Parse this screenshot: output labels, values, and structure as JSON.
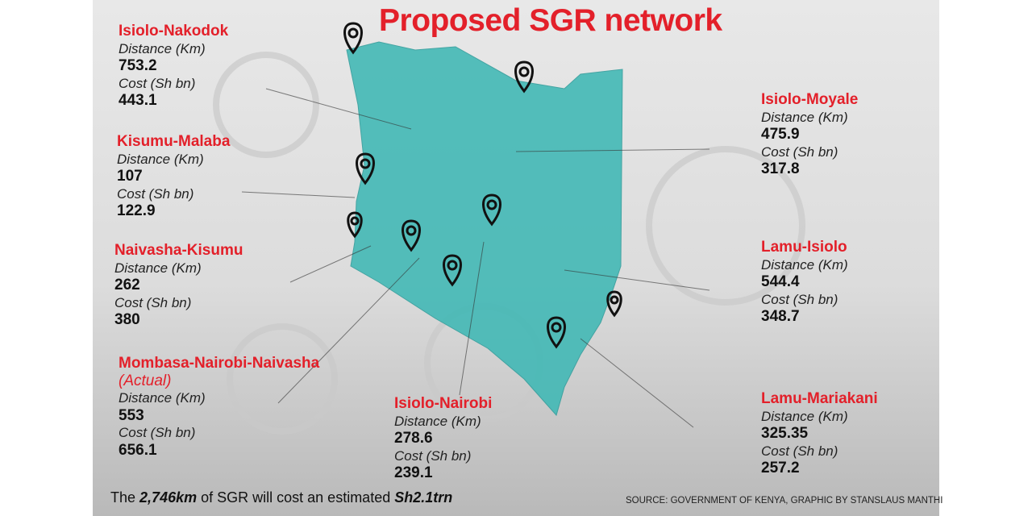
{
  "header": {
    "title": "Proposed SGR network"
  },
  "routes": [
    {
      "name": "Isiolo-Nakodok",
      "distance_label": "Distance (Km)",
      "distance": 753.2,
      "cost_label": "Cost (Sh bn)",
      "cost": 443.1
    },
    {
      "name": "Kisumu-Malaba",
      "distance_label": "Distance (Km)",
      "distance": 107,
      "cost_label": "Cost (Sh bn)",
      "cost": 122.9
    },
    {
      "name": "Naivasha-Kisumu",
      "distance_label": "Distance (Km)",
      "distance": 262,
      "cost_label": "Cost (Sh bn)",
      "cost": 380
    },
    {
      "name": "Mombasa-Nairobi-Naivasha",
      "note": "(Actual)",
      "distance_label": "Distance (Km)",
      "distance": 553,
      "cost_label": "Cost (Sh bn)",
      "cost": 656.1
    },
    {
      "name": "Isiolo-Nairobi",
      "distance_label": "Distance (Km)",
      "distance": 278.6,
      "cost_label": "Cost (Sh bn)",
      "cost": 239.1
    },
    {
      "name": "Isiolo-Moyale",
      "distance_label": "Distance (Km)",
      "distance": 475.9,
      "cost_label": "Cost (Sh bn)",
      "cost": 317.8
    },
    {
      "name": "Lamu-Isiolo",
      "distance_label": "Distance (Km)",
      "distance": 544.4,
      "cost_label": "Cost (Sh bn)",
      "cost": 348.7
    },
    {
      "name": "Lamu-Mariakani",
      "distance_label": "Distance (Km)",
      "distance": 325.35,
      "cost_label": "Cost (Sh bn)",
      "cost": 257.2
    }
  ],
  "footer": {
    "parts": [
      "The",
      "2,746km",
      "of SGR will cost an estimated",
      "Sh2.1trn"
    ],
    "source": "SOURCE: GOVERNMENT OF KENYA, GRAPHIC BY STANSLAUS MANTHI"
  }
}
